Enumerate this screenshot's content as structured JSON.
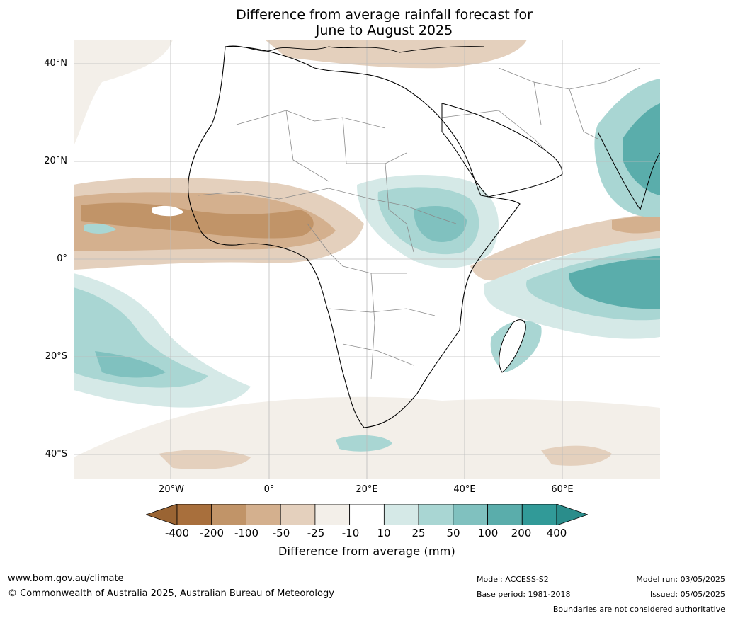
{
  "title": {
    "line1": "Difference from average rainfall forecast for",
    "line2": "June to August 2025"
  },
  "map": {
    "lat_labels": [
      "40°N",
      "20°N",
      "0°",
      "20°S",
      "40°S"
    ],
    "lon_labels": [
      "20°W",
      "0°",
      "20°E",
      "40°E",
      "60°E"
    ]
  },
  "colorbar": {
    "ticks": [
      "-400",
      "-200",
      "-100",
      "-50",
      "-25",
      "-10",
      "10",
      "25",
      "50",
      "100",
      "200",
      "400"
    ],
    "colors": [
      "#a86f3c",
      "#c19468",
      "#d4b08e",
      "#e4d0bd",
      "#f3efe9",
      "#ffffff",
      "#d5e9e7",
      "#a9d6d3",
      "#80c1bf",
      "#5aadab",
      "#319a98"
    ],
    "label": "Difference from average (mm)"
  },
  "footer": {
    "website": "www.bom.gov.au/climate",
    "copyright": "© Commonwealth of Australia 2025, Australian Bureau of Meteorology",
    "model": "Model: ACCESS-S2",
    "base_period": "Base period: 1981-2018",
    "model_run": "Model run: 03/05/2025",
    "issued": "Issued: 05/05/2025",
    "disclaimer": "Boundaries are not considered authoritative"
  }
}
